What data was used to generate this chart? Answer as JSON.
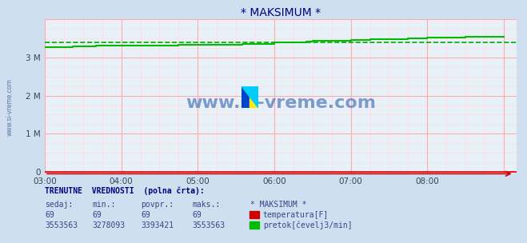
{
  "title": "* MAKSIMUM *",
  "title_color": "#000080",
  "bg_color": "#d0dff0",
  "plot_bg_color": "#e8f0f8",
  "grid_color_major": "#ffaaaa",
  "grid_color_minor": "#ffdddd",
  "x_ticks_pos": [
    0,
    60,
    120,
    180,
    240,
    300
  ],
  "x_tick_labels": [
    "03:00",
    "04:00",
    "05:00",
    "06:00",
    "07:00",
    "08:00"
  ],
  "y_max": 4000000,
  "y_ticks": [
    0,
    1000000,
    2000000,
    3000000
  ],
  "y_tick_labels": [
    "0",
    "1 M",
    "2 M",
    "3 M"
  ],
  "watermark": "www.si-vreme.com",
  "watermark_color": "#2255aa",
  "temp_color": "#dd0000",
  "flow_color": "#00bb00",
  "flow_dashed_color": "#00aa00",
  "temp_value": 69,
  "flow_x": [
    0,
    22,
    22,
    40,
    40,
    60,
    60,
    85,
    85,
    88,
    88,
    105,
    105,
    115,
    115,
    120,
    120,
    140,
    140,
    155,
    155,
    165,
    165,
    180,
    180,
    205,
    205,
    210,
    210,
    225,
    225,
    240,
    240,
    255,
    255,
    270,
    270,
    285,
    285,
    300,
    300,
    315,
    315,
    330,
    330,
    345,
    345,
    360
  ],
  "flow_y": [
    3278093,
    3278093,
    3295000,
    3295000,
    3305000,
    3305000,
    3310000,
    3310000,
    3318000,
    3318000,
    3322000,
    3322000,
    3328000,
    3328000,
    3332000,
    3332000,
    3338000,
    3338000,
    3345000,
    3345000,
    3352000,
    3352000,
    3360000,
    3360000,
    3400000,
    3400000,
    3418000,
    3418000,
    3432000,
    3432000,
    3450000,
    3450000,
    3465000,
    3465000,
    3478000,
    3478000,
    3492000,
    3492000,
    3505000,
    3505000,
    3518000,
    3518000,
    3530000,
    3530000,
    3540000,
    3540000,
    3553563,
    3553563
  ],
  "dashed_value": 3393421,
  "label_text": "TRENUTNE  VREDNOSTI  (polna črta):",
  "col1_header": "sedaj:",
  "col2_header": "min.:",
  "col3_header": "povpr.:",
  "col4_header": "maks.:",
  "col5_header": "* MAKSIMUM *",
  "row1": [
    "69",
    "69",
    "69",
    "69"
  ],
  "row2": [
    "3553563",
    "3278093",
    "3393421",
    "3553563"
  ],
  "legend1_color": "#cc0000",
  "legend1_label": "temperatura[F]",
  "legend2_color": "#00bb00",
  "legend2_label": "pretok[čevelj3/min]",
  "left_label": "www.si-vreme.com",
  "left_label_color": "#5577aa",
  "axis_color": "#cc0000"
}
